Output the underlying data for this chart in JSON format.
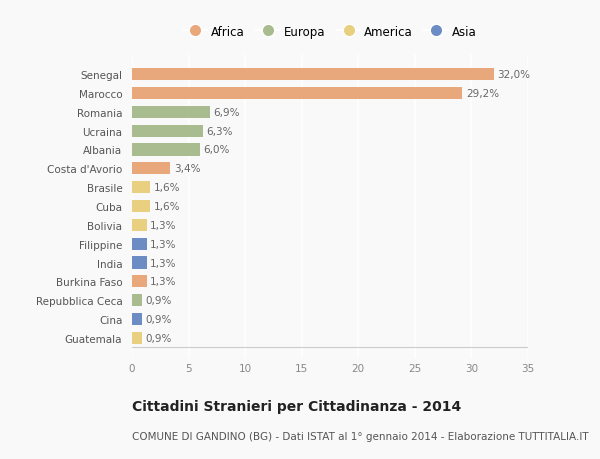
{
  "categories": [
    "Guatemala",
    "Cina",
    "Repubblica Ceca",
    "Burkina Faso",
    "India",
    "Filippine",
    "Bolivia",
    "Cuba",
    "Brasile",
    "Costa d'Avorio",
    "Albania",
    "Ucraina",
    "Romania",
    "Marocco",
    "Senegal"
  ],
  "values": [
    0.9,
    0.9,
    0.9,
    1.3,
    1.3,
    1.3,
    1.3,
    1.6,
    1.6,
    3.4,
    6.0,
    6.3,
    6.9,
    29.2,
    32.0
  ],
  "labels": [
    "0,9%",
    "0,9%",
    "0,9%",
    "1,3%",
    "1,3%",
    "1,3%",
    "1,3%",
    "1,6%",
    "1,6%",
    "3,4%",
    "6,0%",
    "6,3%",
    "6,9%",
    "29,2%",
    "32,0%"
  ],
  "continents": [
    "America",
    "Asia",
    "Europa",
    "Africa",
    "Asia",
    "Asia",
    "America",
    "America",
    "America",
    "Africa",
    "Europa",
    "Europa",
    "Europa",
    "Africa",
    "Africa"
  ],
  "colors": {
    "Africa": "#E8A87C",
    "Europa": "#A8BC8F",
    "America": "#E8D080",
    "Asia": "#6B8DC4"
  },
  "title": "Cittadini Stranieri per Cittadinanza - 2014",
  "subtitle": "COMUNE DI GANDINO (BG) - Dati ISTAT al 1° gennaio 2014 - Elaborazione TUTTITALIA.IT",
  "xlim": [
    0,
    35
  ],
  "xticks": [
    0,
    5,
    10,
    15,
    20,
    25,
    30,
    35
  ],
  "background_color": "#f9f9f9",
  "bar_height": 0.65,
  "title_fontsize": 10,
  "subtitle_fontsize": 7.5,
  "label_fontsize": 7.5,
  "tick_fontsize": 7.5,
  "legend_fontsize": 8.5,
  "legend_order": [
    "Africa",
    "Europa",
    "America",
    "Asia"
  ]
}
